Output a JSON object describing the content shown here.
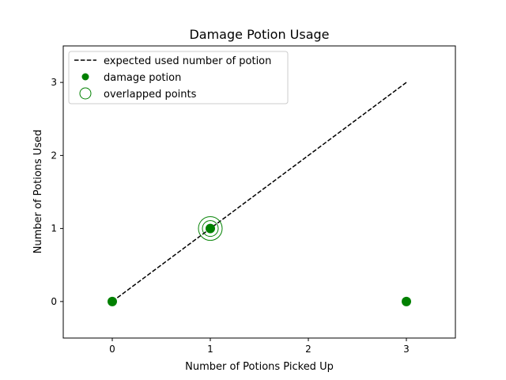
{
  "chart_data": {
    "type": "scatter",
    "title": "Damage Potion Usage",
    "xlabel": "Number of Potions Picked Up",
    "ylabel": "Number of Potions Used",
    "xlim": [
      -0.5,
      3.5
    ],
    "ylim": [
      -0.5,
      3.5
    ],
    "xticks": [
      0,
      1,
      2,
      3
    ],
    "yticks": [
      0,
      1,
      2,
      3
    ],
    "grid": false,
    "legend_position": "top-left",
    "expected_line": {
      "name": "expected used number of potion",
      "x": [
        0,
        3
      ],
      "y": [
        0,
        3
      ],
      "color": "#000000",
      "style": "dashed"
    },
    "series": [
      {
        "name": "damage potion",
        "color": "#008000",
        "marker": "filled-circle",
        "x": [
          0,
          1,
          3
        ],
        "y": [
          0,
          1,
          0
        ]
      }
    ],
    "overlapped": {
      "name": "overlapped points",
      "color": "#008000",
      "marker": "hollow-circle",
      "points": [
        {
          "x": 1,
          "y": 1,
          "rings": 2
        }
      ]
    }
  }
}
